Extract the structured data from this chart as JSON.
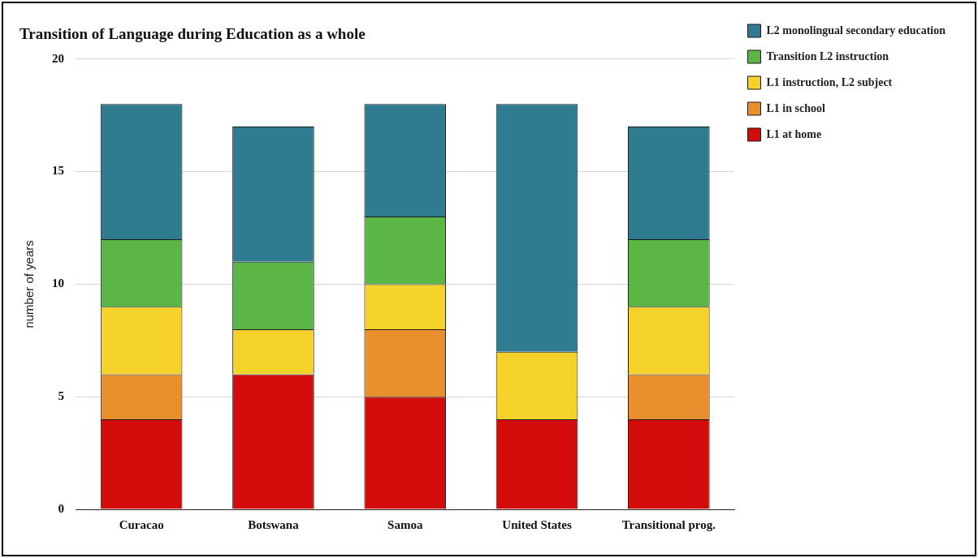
{
  "chart_data": {
    "type": "bar",
    "title": "Transition of Language during Education as a whole",
    "ylabel": "number of years",
    "categories": [
      "Curacao",
      "Botswana",
      "Samoa",
      "United States",
      "Transitional prog."
    ],
    "stacked": true,
    "ylim": [
      0,
      20
    ],
    "yticks": [
      0,
      5,
      10,
      15,
      20
    ],
    "grid": "y",
    "legend": "right",
    "series": [
      {
        "name": "L1 at home",
        "color": "#d40b0b",
        "values": [
          4,
          6,
          5,
          4,
          4
        ]
      },
      {
        "name": "L1 in school",
        "color": "#e98f2e",
        "values": [
          2,
          0,
          3,
          0,
          2
        ]
      },
      {
        "name": "L1 instruction, L2 subject",
        "color": "#f4d229",
        "values": [
          3,
          2,
          2,
          3,
          3
        ]
      },
      {
        "name": "Transition L2 instruction",
        "color": "#5bb646",
        "values": [
          3,
          3,
          3,
          0,
          3
        ]
      },
      {
        "name": "L2 monolingual secondary education",
        "color": "#2f7b90",
        "values": [
          6,
          6,
          5,
          11,
          5
        ]
      }
    ]
  }
}
